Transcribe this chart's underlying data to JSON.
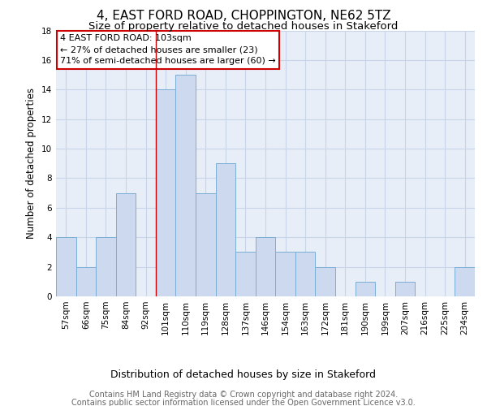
{
  "title": "4, EAST FORD ROAD, CHOPPINGTON, NE62 5TZ",
  "subtitle": "Size of property relative to detached houses in Stakeford",
  "xlabel": "Distribution of detached houses by size in Stakeford",
  "ylabel": "Number of detached properties",
  "footer_line1": "Contains HM Land Registry data © Crown copyright and database right 2024.",
  "footer_line2": "Contains public sector information licensed under the Open Government Licence v3.0.",
  "bin_labels": [
    "57sqm",
    "66sqm",
    "75sqm",
    "84sqm",
    "92sqm",
    "101sqm",
    "110sqm",
    "119sqm",
    "128sqm",
    "137sqm",
    "146sqm",
    "154sqm",
    "163sqm",
    "172sqm",
    "181sqm",
    "190sqm",
    "199sqm",
    "207sqm",
    "216sqm",
    "225sqm",
    "234sqm"
  ],
  "bar_heights": [
    4,
    2,
    4,
    7,
    0,
    14,
    15,
    7,
    9,
    3,
    4,
    3,
    3,
    2,
    0,
    1,
    0,
    1,
    0,
    0,
    2
  ],
  "bar_color": "#ccd9ee",
  "bar_edge_color": "#7badd4",
  "grid_color": "#c8d4e8",
  "bg_color": "#e8eef8",
  "annotation_text_line1": "4 EAST FORD ROAD: 103sqm",
  "annotation_text_line2": "← 27% of detached houses are smaller (23)",
  "annotation_text_line3": "71% of semi-detached houses are larger (60) →",
  "annotation_box_facecolor": "#ffffff",
  "annotation_box_edgecolor": "#cc0000",
  "red_line_bin_index": 5,
  "ylim": [
    0,
    18
  ],
  "yticks": [
    0,
    2,
    4,
    6,
    8,
    10,
    12,
    14,
    16,
    18
  ],
  "title_fontsize": 11,
  "subtitle_fontsize": 9.5,
  "ylabel_fontsize": 8.5,
  "xlabel_fontsize": 9,
  "tick_fontsize": 7.5,
  "footer_fontsize": 7,
  "annotation_fontsize": 8
}
